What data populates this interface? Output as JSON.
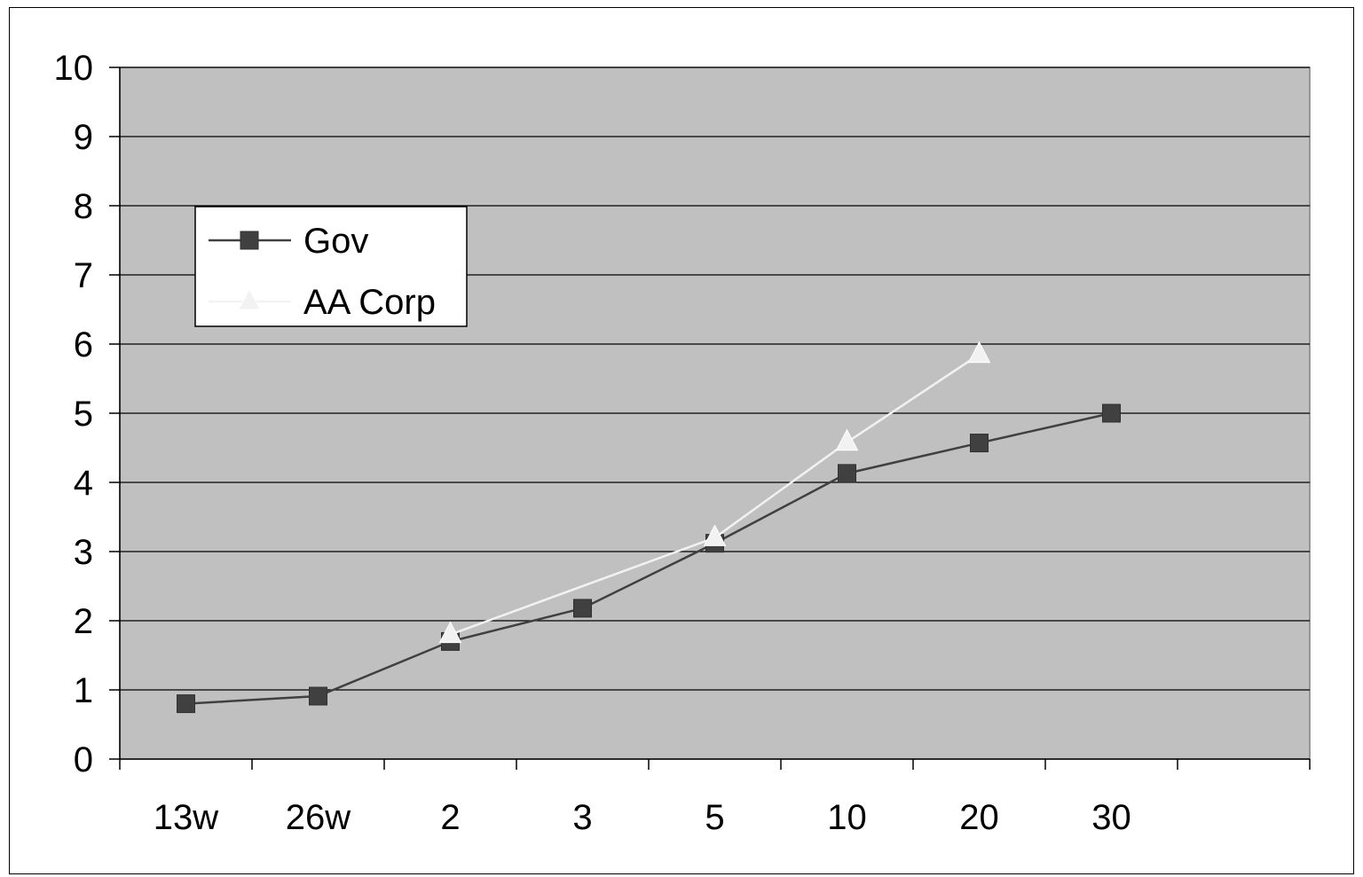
{
  "chart_data": {
    "type": "line",
    "categories": [
      "13w",
      "26w",
      "2",
      "3",
      "5",
      "10",
      "20",
      "30",
      ""
    ],
    "ylim": [
      0,
      10
    ],
    "yticks": [
      "0",
      "1",
      "2",
      "3",
      "4",
      "5",
      "6",
      "7",
      "8",
      "9",
      "10"
    ],
    "grid": true,
    "legend_position": "upper-left",
    "plot_background": "#c0c0c0",
    "series": [
      {
        "name": "Gov",
        "values": [
          0.8,
          0.91,
          1.7,
          2.18,
          3.12,
          4.13,
          4.57,
          5.0,
          null
        ],
        "color": "#404040",
        "marker": "square"
      },
      {
        "name": "AA Corp",
        "values": [
          null,
          null,
          1.8,
          null,
          3.2,
          4.58,
          5.85,
          null,
          null
        ],
        "color": "#f2f2f2",
        "marker": "triangle"
      }
    ]
  }
}
